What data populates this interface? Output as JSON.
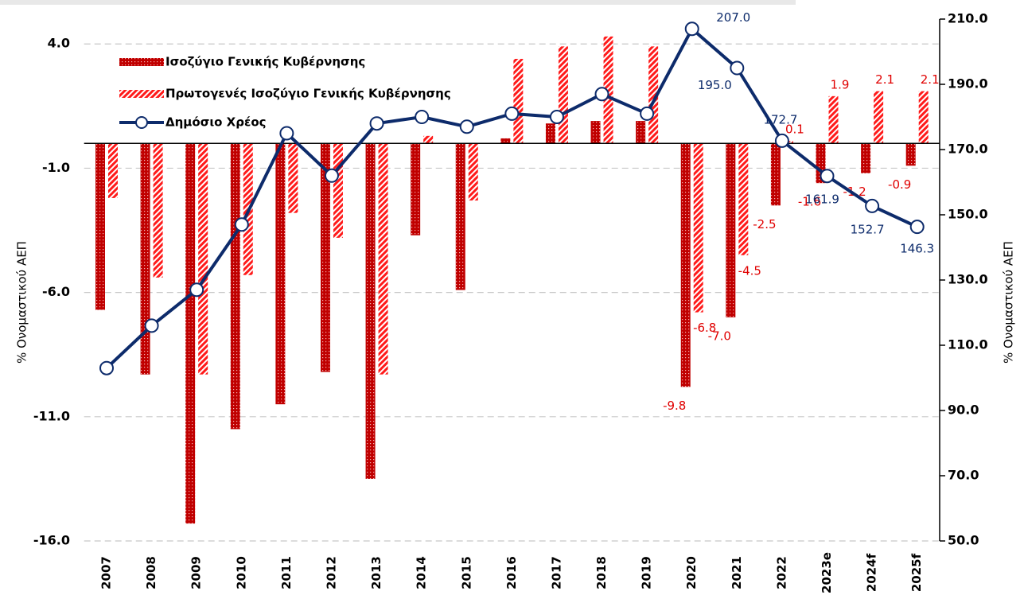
{
  "chart_data": {
    "type": "bar-line",
    "categories": [
      "2007",
      "2008",
      "2009",
      "2010",
      "2011",
      "2012",
      "2013",
      "2014",
      "2015",
      "2016",
      "2017",
      "2018",
      "2019",
      "2020",
      "2021",
      "2022",
      "2023e",
      "2024f",
      "2025f"
    ],
    "series": [
      {
        "name": "Ισοζύγιο Γενικής Κυβέρνησης",
        "color": "#c00000",
        "type": "bar",
        "axis": "y",
        "values": [
          -6.7,
          -9.3,
          -15.3,
          -11.5,
          -10.5,
          -9.2,
          -13.5,
          -3.7,
          -5.9,
          0.2,
          0.8,
          0.9,
          0.9,
          -9.8,
          -7.0,
          -2.5,
          -1.6,
          -1.2,
          -0.9
        ],
        "value_labels": [
          null,
          null,
          null,
          null,
          null,
          null,
          null,
          null,
          null,
          null,
          null,
          null,
          null,
          "-9.8",
          "-7.0",
          "-2.5",
          "-1.6",
          "-1.2",
          "-0.9"
        ]
      },
      {
        "name": "Πρωτογενές Ισοζύγιο Γενικής Κυβέρνησης",
        "color": "#ff1a1a",
        "type": "bar",
        "axis": "y",
        "values": [
          -2.2,
          -5.4,
          -9.3,
          -5.3,
          -2.8,
          -3.8,
          -9.3,
          0.3,
          -2.3,
          3.4,
          3.9,
          4.3,
          3.9,
          -6.8,
          -4.5,
          0.1,
          1.9,
          2.1,
          2.1
        ],
        "value_labels": [
          null,
          null,
          null,
          null,
          null,
          null,
          null,
          null,
          null,
          null,
          null,
          null,
          null,
          "-6.8",
          "-4.5",
          "0.1",
          "1.9",
          "2.1",
          "2.1"
        ]
      },
      {
        "name": "Δημόσιο Χρέος",
        "color": "#0d2b6b",
        "type": "line",
        "axis": "y2",
        "values": [
          103,
          116,
          127,
          147,
          175,
          162,
          178,
          180,
          177,
          181,
          180,
          187,
          181,
          207.0,
          195.0,
          172.7,
          161.9,
          152.7,
          146.3
        ],
        "value_labels": [
          null,
          null,
          null,
          null,
          null,
          null,
          null,
          null,
          null,
          null,
          null,
          null,
          null,
          "207.0",
          "195.0",
          "172.7",
          "161.9",
          "152.7",
          "146.3"
        ]
      }
    ],
    "ylabel": "% Ονομαστικού ΑΕΠ",
    "y2label": "% Ονομαστικού ΑΕΠ",
    "ylim": [
      -16,
      5
    ],
    "yticks": [
      {
        "value": 4,
        "label": "4.0"
      },
      {
        "value": -1,
        "label": "-1.0"
      },
      {
        "value": -6,
        "label": "-6.0"
      },
      {
        "value": -11,
        "label": "-11.0"
      },
      {
        "value": -16,
        "label": "-16.0"
      }
    ],
    "y2lim": [
      50,
      210
    ],
    "y2ticks": [
      {
        "value": 210,
        "label": "210.0"
      },
      {
        "value": 190,
        "label": "190.0"
      },
      {
        "value": 170,
        "label": "170.0"
      },
      {
        "value": 150,
        "label": "150.0"
      },
      {
        "value": 130,
        "label": "130.0"
      },
      {
        "value": 110,
        "label": "110.0"
      },
      {
        "value": 90,
        "label": "90.0"
      },
      {
        "value": 70,
        "label": "70.0"
      },
      {
        "value": 50,
        "label": "50.0"
      }
    ],
    "grid": true,
    "legend": "upper left"
  }
}
